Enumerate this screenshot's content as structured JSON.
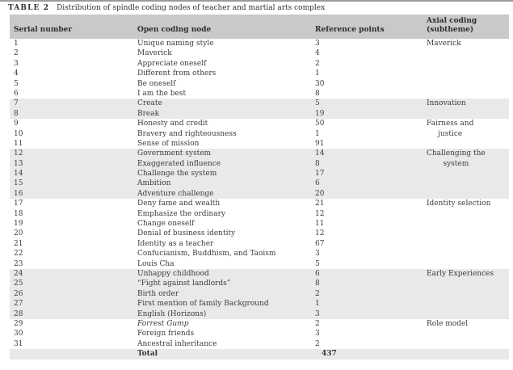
{
  "colors": {
    "header_bg": "#c9c9c9",
    "band_bg": "#e9e9e9",
    "text": "#3c3c3c",
    "top_rule": "#9b9b9b"
  },
  "title": {
    "tag": "TABLE 2",
    "caption": "Distribution of spindle coding nodes of teacher and martial arts complex"
  },
  "table": {
    "columns": [
      {
        "lines": [
          "Serial number"
        ]
      },
      {
        "lines": [
          "Open coding node"
        ]
      },
      {
        "lines": [
          "Reference points"
        ]
      },
      {
        "lines": [
          "Axial coding",
          "(subtheme)"
        ]
      }
    ],
    "groups": [
      {
        "axial_lines": [
          "Maverick"
        ],
        "rows": [
          {
            "serial": "1",
            "node": "Unique naming style",
            "ref": "3"
          },
          {
            "serial": "2",
            "node": "Maverick",
            "ref": "4"
          },
          {
            "serial": "3",
            "node": "Appreciate oneself",
            "ref": "2"
          },
          {
            "serial": "4",
            "node": "Different from others",
            "ref": "1"
          },
          {
            "serial": "5",
            "node": "Be oneself",
            "ref": "30"
          },
          {
            "serial": "6",
            "node": "I am the best",
            "ref": "8"
          }
        ]
      },
      {
        "axial_lines": [
          "Innovation"
        ],
        "rows": [
          {
            "serial": "7",
            "node": "Create",
            "ref": "5"
          },
          {
            "serial": "8",
            "node": "Break",
            "ref": "19"
          }
        ]
      },
      {
        "axial_lines": [
          "Fairness and",
          "justice"
        ],
        "rows": [
          {
            "serial": "9",
            "node": "Honesty and credit",
            "ref": "50"
          },
          {
            "serial": "10",
            "node": "Bravery and righteousness",
            "ref": "1"
          },
          {
            "serial": "11",
            "node": "Sense of mission",
            "ref": "91"
          }
        ]
      },
      {
        "axial_lines": [
          "Challenging the",
          "system"
        ],
        "rows": [
          {
            "serial": "12",
            "node": "Government system",
            "ref": "14"
          },
          {
            "serial": "13",
            "node": "Exaggerated influence",
            "ref": "8"
          },
          {
            "serial": "14",
            "node": "Challenge the system",
            "ref": "17"
          },
          {
            "serial": "15",
            "node": "Ambition",
            "ref": "6"
          },
          {
            "serial": "16",
            "node": "Adventure challenge",
            "ref": "20"
          }
        ]
      },
      {
        "axial_lines": [
          "Identity selection"
        ],
        "rows": [
          {
            "serial": "17",
            "node": "Deny fame and wealth",
            "ref": "21"
          },
          {
            "serial": "18",
            "node": "Emphasize the ordinary",
            "ref": "12"
          },
          {
            "serial": "19",
            "node": "Change oneself",
            "ref": "11"
          },
          {
            "serial": "20",
            "node": "Denial of business identity",
            "ref": "12"
          },
          {
            "serial": "21",
            "node": "Identity as a teacher",
            "ref": "67"
          },
          {
            "serial": "22",
            "node": "Confucianism, Buddhism, and Taoism",
            "ref": "3"
          },
          {
            "serial": "23",
            "node": "Louis Cha",
            "ref": "5"
          }
        ]
      },
      {
        "axial_lines": [
          "Early Experiences"
        ],
        "rows": [
          {
            "serial": "24",
            "node": "Unhappy childhood",
            "ref": "6"
          },
          {
            "serial": "25",
            "node": "“Fight against landlords”",
            "ref": "8"
          },
          {
            "serial": "26",
            "node": "Birth order",
            "ref": "2"
          },
          {
            "serial": "27",
            "node": "First mention of family Background",
            "ref": "1"
          },
          {
            "serial": "28",
            "node": "English (Horizons)",
            "ref": "3"
          }
        ]
      },
      {
        "axial_lines": [
          "Role model"
        ],
        "rows": [
          {
            "serial": "29",
            "node": "Forrest Gump",
            "ref": "2",
            "italic": true
          },
          {
            "serial": "30",
            "node": "Foreign friends",
            "ref": "3"
          },
          {
            "serial": "31",
            "node": "Ancestral inheritance",
            "ref": "2"
          }
        ]
      }
    ],
    "total": {
      "label": "Total",
      "value": "437"
    }
  }
}
